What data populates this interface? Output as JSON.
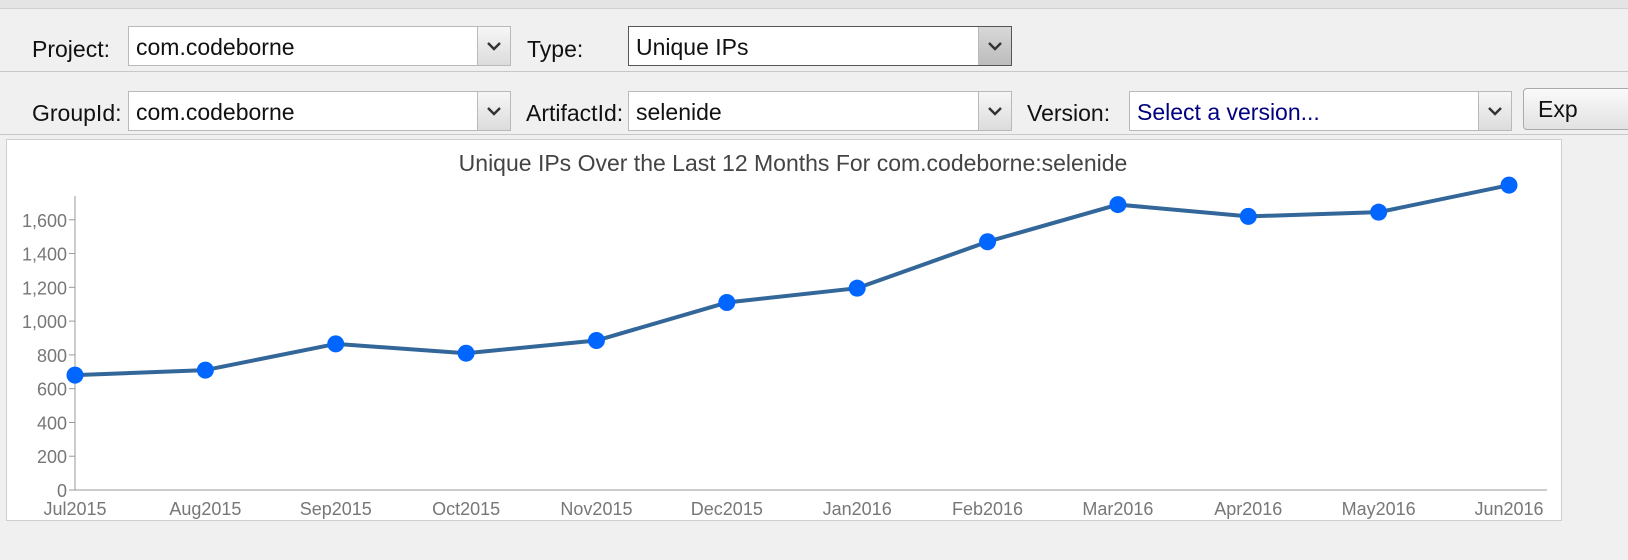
{
  "filters": {
    "project_label": "Project:",
    "project_value": "com.codeborne",
    "type_label": "Type:",
    "type_value": "Unique IPs",
    "groupid_label": "GroupId:",
    "groupid_value": "com.codeborne",
    "artifactid_label": "ArtifactId:",
    "artifactid_value": "selenide",
    "version_label": "Version:",
    "version_placeholder": "Select a version...",
    "export_label": "Exp"
  },
  "colors": {
    "series_line": "#336699",
    "series_point": "#0066ff",
    "axis": "#999999"
  },
  "chart_data": {
    "type": "line",
    "title": "Unique IPs Over the Last 12 Months For com.codeborne:selenide",
    "categories": [
      "Jul2015",
      "Aug2015",
      "Sep2015",
      "Oct2015",
      "Nov2015",
      "Dec2015",
      "Jan2016",
      "Feb2016",
      "Mar2016",
      "Apr2016",
      "May2016",
      "Jun2016"
    ],
    "series": [
      {
        "values": [
          680,
          710,
          865,
          810,
          885,
          1110,
          1195,
          1470,
          1690,
          1620,
          1645,
          1805
        ]
      }
    ],
    "ylim": [
      0,
      1800
    ],
    "yticks": [
      0,
      200,
      400,
      600,
      800,
      1000,
      1200,
      1400,
      1600
    ],
    "ytick_labels": [
      "0",
      "200",
      "400",
      "600",
      "800",
      "1,000",
      "1,200",
      "1,400",
      "1,600"
    ],
    "grid": false,
    "legend": "none"
  }
}
